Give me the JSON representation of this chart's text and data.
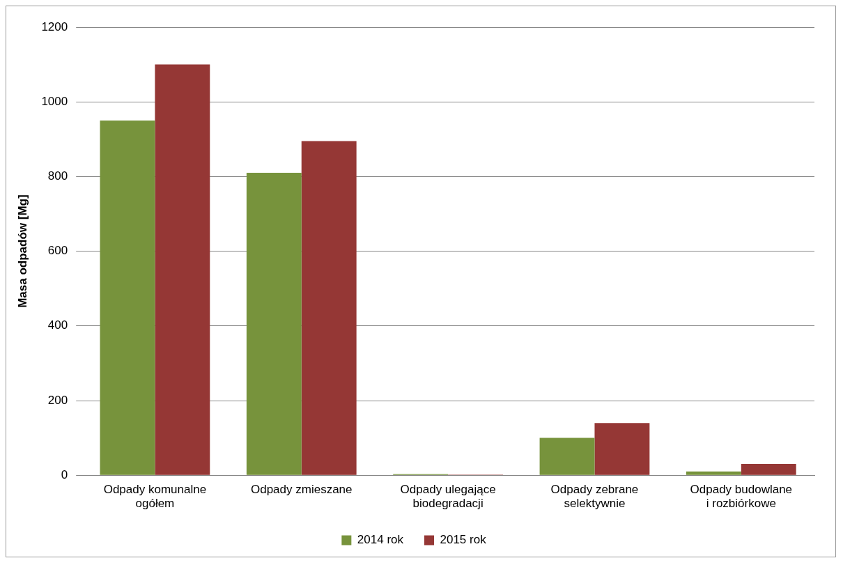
{
  "chart_data": {
    "type": "bar",
    "ylabel": "Masa odpadów [Mg]",
    "categories": [
      "Odpady komunalne ogółem",
      "Odpady zmieszane",
      "Odpady ulegające biodegradacji",
      "Odpady zebrane selektywnie",
      "Odpady budowlane i rozbiórkowe"
    ],
    "series": [
      {
        "name": "2014 rok",
        "color": "#77933c",
        "values": [
          950,
          810,
          3,
          100,
          10
        ]
      },
      {
        "name": "2015 rok",
        "color": "#953735",
        "values": [
          1100,
          895,
          2,
          140,
          30
        ]
      }
    ],
    "ylim": [
      0,
      1200
    ],
    "yticks": [
      0,
      200,
      400,
      600,
      800,
      1000,
      1200
    ],
    "grid": "y",
    "legend": "bottom"
  }
}
